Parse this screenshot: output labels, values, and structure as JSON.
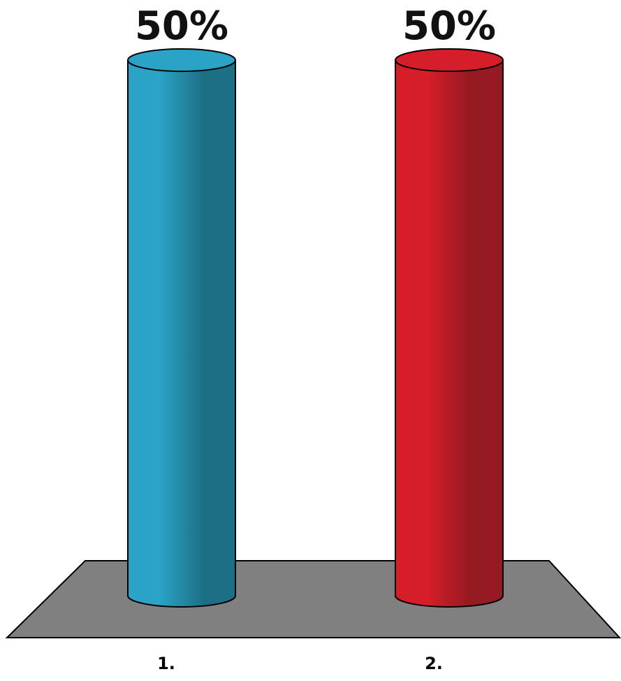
{
  "chart_data": {
    "type": "bar",
    "style": "3d-cylinder",
    "categories": [
      "1.",
      "2."
    ],
    "values": [
      50,
      50
    ],
    "data_labels": [
      "50%",
      "50%"
    ],
    "ylim": [
      0,
      50
    ],
    "grid": false,
    "legend": "none",
    "title": "",
    "xlabel": "",
    "ylabel": ""
  },
  "colors": {
    "bars": [
      "#2aa3c6",
      "#d51e29"
    ],
    "bars_dark": [
      "#1d6f86",
      "#951a21"
    ],
    "floor": "#808080",
    "outline": "#000000",
    "background": "#ffffff"
  }
}
